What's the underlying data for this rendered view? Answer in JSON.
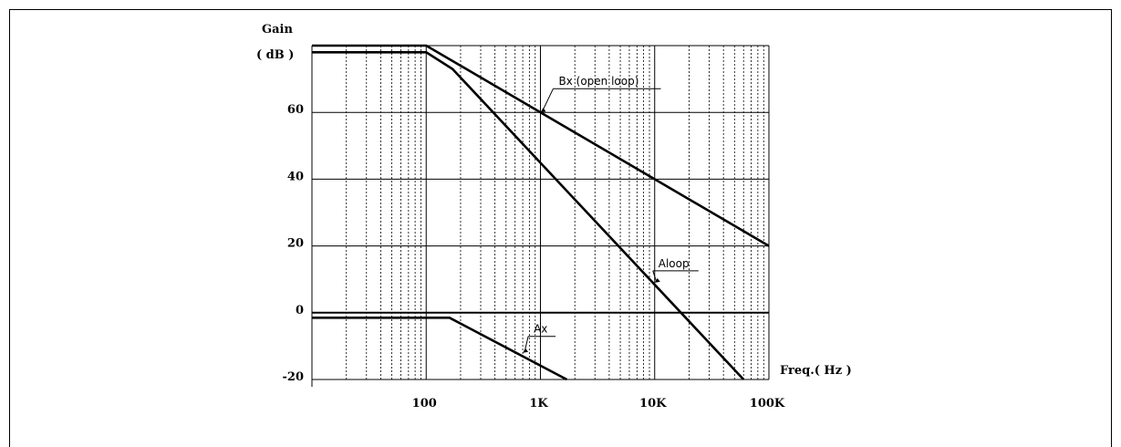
{
  "chart_data": {
    "type": "line",
    "ylabel": "Gain",
    "ylabel_unit": "( dB )",
    "xlabel": "Freq.( Hz )",
    "x_scale": "log",
    "xlim": [
      10,
      100000
    ],
    "ylim": [
      -20,
      80
    ],
    "grid": true,
    "y_ticks": [
      {
        "value": 60,
        "label": "60"
      },
      {
        "value": 40,
        "label": "40"
      },
      {
        "value": 20,
        "label": "20"
      },
      {
        "value": 0,
        "label": "0"
      },
      {
        "value": -20,
        "label": "-20"
      }
    ],
    "x_ticks": [
      {
        "value": 100,
        "label": "100"
      },
      {
        "value": 1000,
        "label": "1K"
      },
      {
        "value": 10000,
        "label": "10K"
      },
      {
        "value": 100000,
        "label": "100K"
      }
    ],
    "series": [
      {
        "name": "Bx (open loop)",
        "points": [
          [
            10,
            80
          ],
          [
            100,
            80
          ],
          [
            100000,
            20
          ]
        ]
      },
      {
        "name": "Aloop",
        "points": [
          [
            10,
            78
          ],
          [
            100,
            78
          ],
          [
            170,
            73
          ],
          [
            60000,
            -20
          ]
        ]
      },
      {
        "name": "Ax",
        "points": [
          [
            10,
            -1.5
          ],
          [
            160,
            -1.5
          ],
          [
            1700,
            -20
          ]
        ]
      }
    ],
    "annotations": [
      {
        "text": "Bx (open loop)",
        "target": [
          1000,
          60
        ]
      },
      {
        "text": "Aloop",
        "target": [
          10000,
          9
        ]
      },
      {
        "text": "Ax",
        "target": [
          700,
          -12
        ]
      }
    ]
  }
}
